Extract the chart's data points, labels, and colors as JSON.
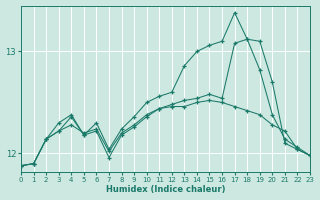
{
  "xlabel": "Humidex (Indice chaleur)",
  "bg_color": "#cde8e0",
  "line_color": "#1a7a6a",
  "xlim": [
    0,
    23
  ],
  "ylim": [
    11.82,
    13.45
  ],
  "yticks": [
    12,
    13
  ],
  "xticks": [
    0,
    1,
    2,
    3,
    4,
    5,
    6,
    7,
    8,
    9,
    10,
    11,
    12,
    13,
    14,
    15,
    16,
    17,
    18,
    19,
    20,
    21,
    22,
    23
  ],
  "s1_x": [
    0,
    1,
    2,
    3,
    4,
    5,
    6,
    7,
    8,
    9,
    10,
    11,
    12,
    13,
    14,
    15,
    16,
    17,
    18,
    19,
    20,
    21,
    22,
    23
  ],
  "s1_y": [
    11.88,
    11.9,
    12.14,
    12.22,
    12.28,
    12.2,
    12.24,
    12.02,
    12.2,
    12.28,
    12.38,
    12.44,
    12.46,
    12.46,
    12.5,
    12.52,
    12.5,
    12.46,
    12.42,
    12.38,
    12.28,
    12.22,
    12.04,
    11.98
  ],
  "s2_x": [
    0,
    1,
    2,
    3,
    4,
    5,
    6,
    7,
    8,
    9,
    10,
    11,
    12,
    13,
    14,
    15,
    16,
    17,
    18,
    19,
    20,
    21,
    22,
    23
  ],
  "s2_y": [
    11.88,
    11.9,
    12.14,
    12.3,
    12.38,
    12.18,
    12.3,
    12.04,
    12.24,
    12.36,
    12.5,
    12.56,
    12.6,
    12.86,
    13.0,
    13.06,
    13.1,
    13.38,
    13.12,
    12.82,
    12.38,
    12.14,
    12.06,
    11.98
  ],
  "s3_x": [
    0,
    1,
    2,
    3,
    4,
    5,
    6,
    7,
    8,
    9,
    10,
    11,
    12,
    13,
    14,
    15,
    16,
    17,
    18,
    19,
    20,
    21,
    22,
    23
  ],
  "s3_y": [
    11.88,
    11.9,
    12.14,
    12.22,
    12.36,
    12.18,
    12.22,
    11.96,
    12.18,
    12.26,
    12.36,
    12.44,
    12.48,
    12.52,
    12.54,
    12.58,
    12.54,
    13.08,
    13.12,
    13.1,
    12.7,
    12.1,
    12.04,
    11.98
  ]
}
